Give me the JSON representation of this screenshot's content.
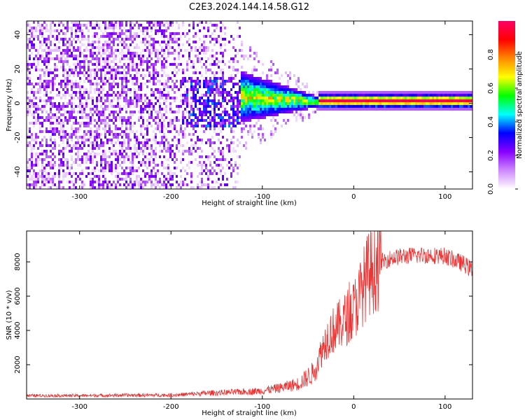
{
  "title": "C2E3.2024.144.14.58.G12",
  "chart_data": [
    {
      "type": "heatmap",
      "xlabel": "Height of straight line (km)",
      "ylabel": "Frequency (Hz)",
      "xlim": [
        -358,
        130
      ],
      "ylim": [
        -50,
        48
      ],
      "xticks": [
        -300,
        -200,
        -100,
        0,
        100
      ],
      "yticks": [
        -40,
        -20,
        0,
        20,
        40
      ],
      "colorbar": {
        "label": "Normalized spectral amplitude",
        "range": [
          0,
          1
        ],
        "ticks": [
          0.0,
          0.2,
          0.4,
          0.6,
          0.8
        ],
        "colormap": [
          "#ffffff",
          "#cc88ff",
          "#8800ff",
          "#0000ff",
          "#00ffff",
          "#00ff00",
          "#ffff00",
          "#ff8800",
          "#ff0000",
          "#ff0066"
        ]
      },
      "description_regions": [
        {
          "x_range": [
            -358,
            -125
          ],
          "freq_spread": "broadband, -50 to 48 Hz",
          "amplitude": 0.1
        },
        {
          "x_range": [
            -125,
            -40
          ],
          "freq_spread": "narrowing from about ±15 Hz to ±3 Hz",
          "amplitude": 0.35
        },
        {
          "x_range": [
            -40,
            130
          ],
          "freq_spread": "narrow line near 0 Hz",
          "amplitude": 0.85
        }
      ]
    },
    {
      "type": "line",
      "xlabel": "Height of straight line (km)",
      "ylabel": "SNR (10 * v/v)",
      "xlim": [
        -358,
        130
      ],
      "ylim": [
        0,
        9800
      ],
      "xticks": [
        -300,
        -200,
        -100,
        0,
        100
      ],
      "yticks": [
        2000,
        4000,
        6000,
        8000
      ],
      "grid": false,
      "series": [
        {
          "color": "#ee3333",
          "x": [
            -358,
            -300,
            -250,
            -200,
            -180,
            -160,
            -140,
            -120,
            -100,
            -80,
            -60,
            -45,
            -35,
            -30,
            -25,
            -20,
            -10,
            0,
            5,
            10,
            15,
            20,
            30,
            40,
            50,
            60,
            80,
            100,
            110,
            120,
            130
          ],
          "y": [
            200,
            200,
            220,
            230,
            280,
            350,
            380,
            420,
            480,
            650,
            900,
            1500,
            2800,
            3500,
            3900,
            4100,
            4600,
            5200,
            5800,
            6500,
            7200,
            7500,
            8000,
            8200,
            8300,
            8350,
            8400,
            8350,
            8100,
            7900,
            7500
          ]
        }
      ]
    }
  ]
}
